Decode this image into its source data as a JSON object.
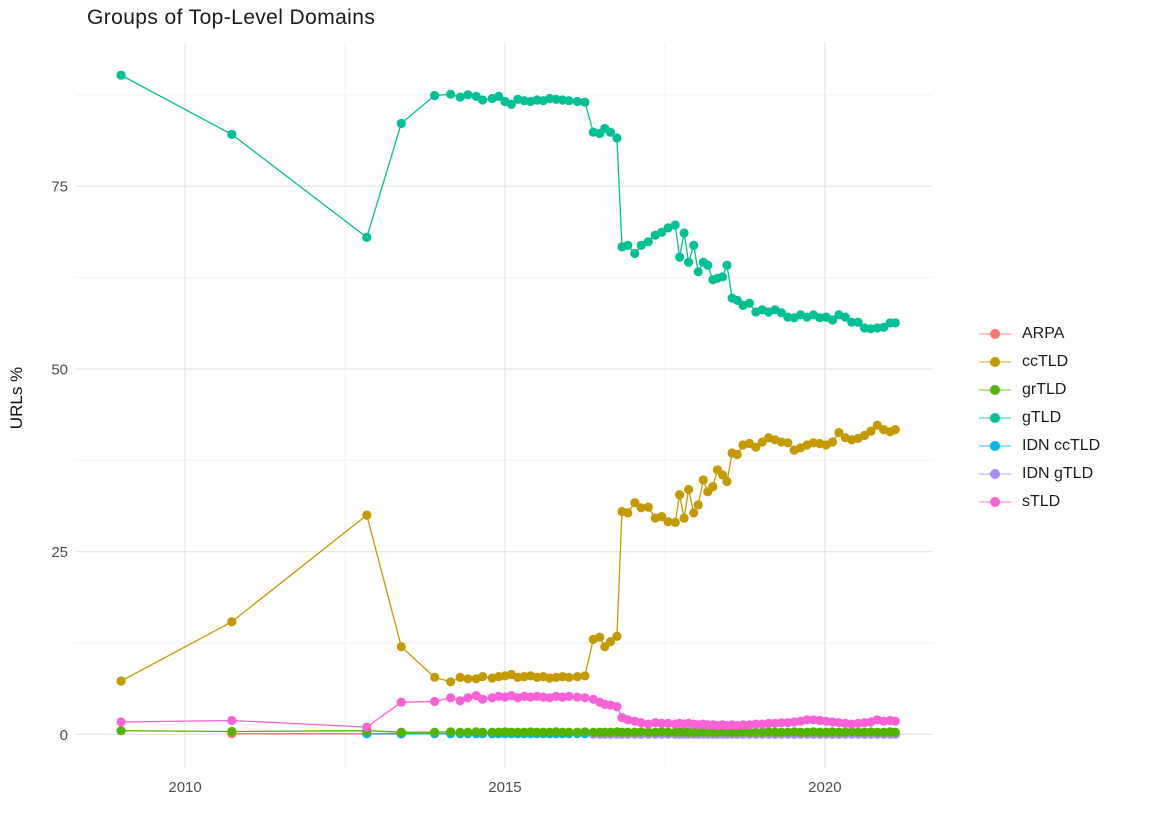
{
  "title": "Groups of Top-Level Domains",
  "y_axis": {
    "label": "URLs %"
  },
  "legend": [
    {
      "label": "ARPA",
      "color": "#F8766D"
    },
    {
      "label": "ccTLD",
      "color": "#C49A00"
    },
    {
      "label": "grTLD",
      "color": "#53B400"
    },
    {
      "label": "gTLD",
      "color": "#00C094"
    },
    {
      "label": "IDN ccTLD",
      "color": "#00B6EB"
    },
    {
      "label": "IDN gTLD",
      "color": "#A58AFF"
    },
    {
      "label": "sTLD",
      "color": "#FB61D7"
    }
  ],
  "colors": {
    "background": "#ffffff",
    "grid_major": "#e4e4e4",
    "grid_minor": "#f2f2f2",
    "axis_text": "#4d4d4d",
    "title_text": "#1a1a1a"
  },
  "chart_data": {
    "type": "line",
    "title": "Groups of Top-Level Domains",
    "xlabel": "",
    "ylabel": "URLs %",
    "xlim": [
      2008.28,
      2021.69
    ],
    "ylim": [
      -4.6,
      94.6
    ],
    "x_major_ticks": [
      2010,
      2015,
      2020
    ],
    "x_tick_labels": [
      "2010",
      "2015",
      "2020"
    ],
    "x_minor_ticks": [
      2012.5,
      2017.5
    ],
    "y_major_ticks": [
      0,
      25,
      50,
      75
    ],
    "y_tick_labels": [
      "0",
      "25",
      "50",
      "75"
    ],
    "y_minor_ticks": [
      12.5,
      37.5,
      62.5,
      87.5
    ],
    "grid": "major+minor",
    "legend_position": "right",
    "x": [
      2009.0,
      2010.73,
      2012.84,
      2013.38,
      2013.9,
      2014.15,
      2014.3,
      2014.42,
      2014.55,
      2014.65,
      2014.8,
      2014.9,
      2015.0,
      2015.1,
      2015.2,
      2015.3,
      2015.4,
      2015.5,
      2015.6,
      2015.7,
      2015.8,
      2015.9,
      2016.0,
      2016.13,
      2016.25,
      2016.38,
      2016.48,
      2016.56,
      2016.65,
      2016.75,
      2016.83,
      2016.92,
      2017.03,
      2017.13,
      2017.24,
      2017.35,
      2017.45,
      2017.55,
      2017.66,
      2017.73,
      2017.8,
      2017.87,
      2017.95,
      2018.02,
      2018.1,
      2018.17,
      2018.25,
      2018.32,
      2018.4,
      2018.47,
      2018.55,
      2018.63,
      2018.72,
      2018.82,
      2018.92,
      2019.02,
      2019.12,
      2019.22,
      2019.32,
      2019.42,
      2019.52,
      2019.62,
      2019.72,
      2019.82,
      2019.92,
      2020.02,
      2020.12,
      2020.22,
      2020.32,
      2020.42,
      2020.52,
      2020.62,
      2020.72,
      2020.82,
      2020.92,
      2021.02,
      2021.1
    ],
    "series": [
      {
        "name": "ARPA",
        "color": "#F8766D",
        "first": 1,
        "values": [
          0.1,
          0.1,
          0.05
        ]
      },
      {
        "name": "IDN ccTLD",
        "color": "#00B6EB",
        "first": 2,
        "values": [
          0.1,
          0.1,
          0.1,
          0.1,
          0.1,
          0.1,
          0.1,
          0.1,
          0.1,
          0.1,
          0.1,
          0.1,
          0.1,
          0.1,
          0.1,
          0.1,
          0.1,
          0.1,
          0.1,
          0.1,
          0.1,
          0.1,
          0.1,
          0.1,
          0.1,
          0.1,
          0.1,
          0.1,
          0.1,
          0.1,
          0.1,
          0.1,
          0.1,
          0.1,
          0.1,
          0.1,
          0.1,
          0.1,
          0.1,
          0.1,
          0.1,
          0.1,
          0.1,
          0.1,
          0.1,
          0.1,
          0.1,
          0.1,
          0.1,
          0.1,
          0.1,
          0.1,
          0.1,
          0.1,
          0.1,
          0.1,
          0.1,
          0.1,
          0.1,
          0.1,
          0.1,
          0.1,
          0.1,
          0.1,
          0.1,
          0.1,
          0.1,
          0.1,
          0.1,
          0.1,
          0.1,
          0.1,
          0.1,
          0.1,
          0.1
        ]
      },
      {
        "name": "IDN gTLD",
        "color": "#A58AFF",
        "first": 25,
        "values": [
          0.02,
          0.02,
          0.02,
          0.02,
          0.02,
          0.02,
          0.02,
          0.02,
          0.02,
          0.02,
          0.02,
          0.02,
          0.02,
          0.02,
          0.02,
          0.02,
          0.02,
          0.02,
          0.02,
          0.02,
          0.02,
          0.02,
          0.02,
          0.02,
          0.02,
          0.02,
          0.02,
          0.02,
          0.02,
          0.02,
          0.02,
          0.02,
          0.02,
          0.02,
          0.02,
          0.02,
          0.02,
          0.02,
          0.02,
          0.02,
          0.02,
          0.02,
          0.02,
          0.02,
          0.02,
          0.02,
          0.02,
          0.02,
          0.02,
          0.02,
          0.02,
          0.02
        ]
      },
      {
        "name": "grTLD",
        "color": "#53B400",
        "first": 0,
        "values": [
          0.5,
          0.4,
          0.5,
          0.3,
          0.3,
          0.35,
          0.3,
          0.3,
          0.35,
          0.3,
          0.3,
          0.3,
          0.35,
          0.3,
          0.3,
          0.3,
          0.35,
          0.3,
          0.3,
          0.3,
          0.35,
          0.3,
          0.3,
          0.3,
          0.35,
          0.3,
          0.3,
          0.3,
          0.3,
          0.35,
          0.3,
          0.3,
          0.3,
          0.35,
          0.3,
          0.3,
          0.35,
          0.3,
          0.3,
          0.3,
          0.35,
          0.3,
          0.3,
          0.3,
          0.35,
          0.3,
          0.3,
          0.3,
          0.35,
          0.3,
          0.3,
          0.3,
          0.35,
          0.3,
          0.3,
          0.3,
          0.35,
          0.3,
          0.3,
          0.3,
          0.35,
          0.3,
          0.3,
          0.35,
          0.3,
          0.3,
          0.35,
          0.3,
          0.3,
          0.35,
          0.3,
          0.3,
          0.35,
          0.3,
          0.3,
          0.35,
          0.3
        ]
      },
      {
        "name": "ccTLD",
        "color": "#C49A00",
        "first": 0,
        "values": [
          7.3,
          15.4,
          30,
          12,
          7.8,
          7.2,
          7.8,
          7.6,
          7.6,
          7.9,
          7.7,
          7.9,
          8,
          8.2,
          7.8,
          7.9,
          8,
          7.8,
          7.9,
          7.7,
          7.8,
          7.9,
          7.8,
          7.9,
          8,
          13,
          13.3,
          12,
          12.7,
          13.4,
          30.5,
          30.3,
          31.7,
          31,
          31.1,
          29.6,
          29.8,
          29.1,
          29,
          32.8,
          29.6,
          33.5,
          30.3,
          31.4,
          34.8,
          33.2,
          33.9,
          36.2,
          35.5,
          34.6,
          38.5,
          38.3,
          39.6,
          39.8,
          39.3,
          40,
          40.6,
          40.3,
          40,
          39.9,
          38.9,
          39.2,
          39.6,
          39.9,
          39.8,
          39.6,
          40,
          41.3,
          40.6,
          40.3,
          40.5,
          40.9,
          41.5,
          42.3,
          41.7,
          41.4,
          41.7
        ]
      },
      {
        "name": "gTLD",
        "color": "#00C094",
        "first": 0,
        "values": [
          90.2,
          82.1,
          68,
          83.6,
          87.4,
          87.6,
          87.2,
          87.5,
          87.3,
          86.8,
          87,
          87.3,
          86.6,
          86.2,
          86.9,
          86.7,
          86.6,
          86.8,
          86.7,
          87,
          86.9,
          86.8,
          86.7,
          86.6,
          86.5,
          82.4,
          82.2,
          82.9,
          82.4,
          81.6,
          66.7,
          66.9,
          65.8,
          66.9,
          67.4,
          68.3,
          68.7,
          69.3,
          69.7,
          65.3,
          68.6,
          64.6,
          66.9,
          63.3,
          64.6,
          64.2,
          62.2,
          62.4,
          62.6,
          64.2,
          59.7,
          59.4,
          58.7,
          59,
          57.8,
          58.1,
          57.8,
          58.1,
          57.7,
          57.1,
          57,
          57.4,
          57.1,
          57.4,
          57,
          57.1,
          56.7,
          57.4,
          57.1,
          56.4,
          56.4,
          55.6,
          55.5,
          55.6,
          55.7,
          56.3,
          56.3
        ]
      },
      {
        "name": "sTLD",
        "color": "#FB61D7",
        "first": 0,
        "values": [
          1.7,
          1.9,
          1,
          4.4,
          4.5,
          5,
          4.6,
          5,
          5.3,
          4.8,
          5,
          5.2,
          5.1,
          5.3,
          5,
          5.2,
          5.1,
          5.2,
          5.1,
          5,
          5.2,
          5.1,
          5.2,
          5.1,
          5,
          4.8,
          4.4,
          4.1,
          4,
          3.8,
          2.3,
          2,
          1.8,
          1.6,
          1.4,
          1.6,
          1.5,
          1.5,
          1.4,
          1.5,
          1.4,
          1.5,
          1.4,
          1.3,
          1.4,
          1.3,
          1.3,
          1.2,
          1.3,
          1.2,
          1.3,
          1.2,
          1.3,
          1.3,
          1.4,
          1.4,
          1.5,
          1.5,
          1.6,
          1.6,
          1.7,
          1.8,
          2,
          2,
          1.9,
          1.8,
          1.7,
          1.6,
          1.5,
          1.4,
          1.5,
          1.6,
          1.7,
          2,
          1.8,
          1.9,
          1.8
        ]
      }
    ]
  }
}
